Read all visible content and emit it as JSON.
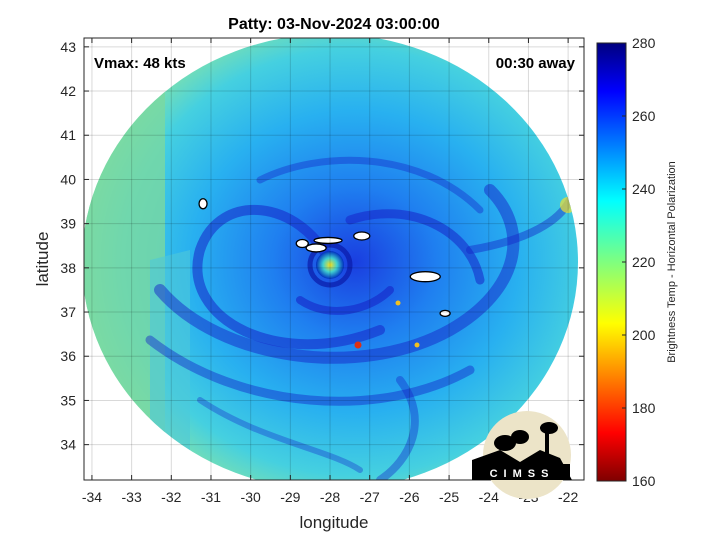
{
  "title": "Patty: 03-Nov-2024 03:00:00",
  "vmax_label": "Vmax: 48 kts",
  "time_offset_label": "00:30 away",
  "xlabel": "longitude",
  "ylabel": "latitude",
  "colorbar_label": "Brightness Temp - Horizontal Polarization",
  "logo_text": "CIMSS",
  "chart_data": {
    "type": "heatmap",
    "title": "Patty: 03-Nov-2024 03:00:00",
    "xlabel": "longitude",
    "ylabel": "latitude",
    "xlim": [
      -34.2,
      -21.6
    ],
    "ylim": [
      33.2,
      43.2
    ],
    "x_ticks": [
      -34,
      -33,
      -32,
      -31,
      -30,
      -29,
      -28,
      -27,
      -26,
      -25,
      -24,
      -23,
      -22
    ],
    "y_ticks": [
      34,
      35,
      36,
      37,
      38,
      39,
      40,
      41,
      42,
      43
    ],
    "grid": true,
    "swath": {
      "center_lon": -27.9,
      "center_lat": 38.2,
      "radius_deg_lat": 5.0
    },
    "storm_center": {
      "lon": -28.0,
      "lat": 38.1
    },
    "colorbar": {
      "min": 160,
      "max": 280,
      "ticks": [
        160,
        180,
        200,
        220,
        240,
        260,
        280
      ],
      "colormap": "jet"
    },
    "coastlines": [
      {
        "name": "Flores",
        "lon": -31.2,
        "lat": 39.45
      },
      {
        "name": "Faial",
        "lon": -28.7,
        "lat": 38.55
      },
      {
        "name": "Pico",
        "lon": -28.35,
        "lat": 38.45
      },
      {
        "name": "Sao Jorge",
        "lon": -28.05,
        "lat": 38.62
      },
      {
        "name": "Terceira",
        "lon": -27.2,
        "lat": 38.72
      },
      {
        "name": "Sao Miguel",
        "lon": -25.6,
        "lat": 37.8
      },
      {
        "name": "Santa Maria",
        "lon": -25.1,
        "lat": 36.97
      }
    ]
  }
}
